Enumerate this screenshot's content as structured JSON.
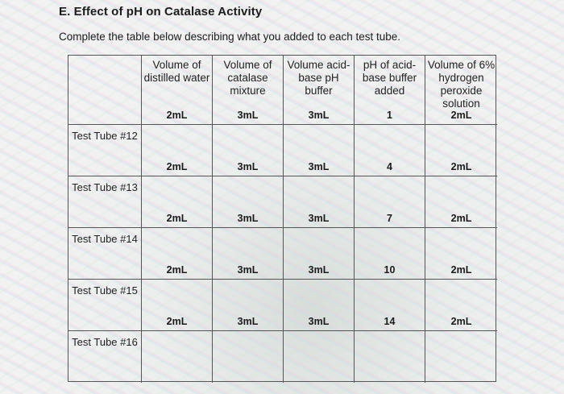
{
  "heading": "E. Effect of pH on Catalase Activity",
  "instruction": "Complete the table below describing what you added to each test tube.",
  "columns": [
    "Volume of distilled water",
    "Volume of catalase mixture",
    "Volume acid-base pH buffer",
    "pH of acid-base buffer added",
    "Volume of 6% hydrogen peroxide solution"
  ],
  "rows": [
    {
      "label": "Test Tube #12",
      "water": "2mL",
      "catalase": "3mL",
      "buffer": "3mL",
      "ph": "1",
      "peroxide": "2mL"
    },
    {
      "label": "Test Tube #13",
      "water": "2mL",
      "catalase": "3mL",
      "buffer": "3mL",
      "ph": "4",
      "peroxide": "2mL"
    },
    {
      "label": "Test Tube #14",
      "water": "2mL",
      "catalase": "3mL",
      "buffer": "3mL",
      "ph": "7",
      "peroxide": "2mL"
    },
    {
      "label": "Test Tube #15",
      "water": "2mL",
      "catalase": "3mL",
      "buffer": "3mL",
      "ph": "10",
      "peroxide": "2mL"
    },
    {
      "label": "Test Tube #16",
      "water": "2mL",
      "catalase": "3mL",
      "buffer": "3mL",
      "ph": "14",
      "peroxide": "2mL"
    }
  ]
}
